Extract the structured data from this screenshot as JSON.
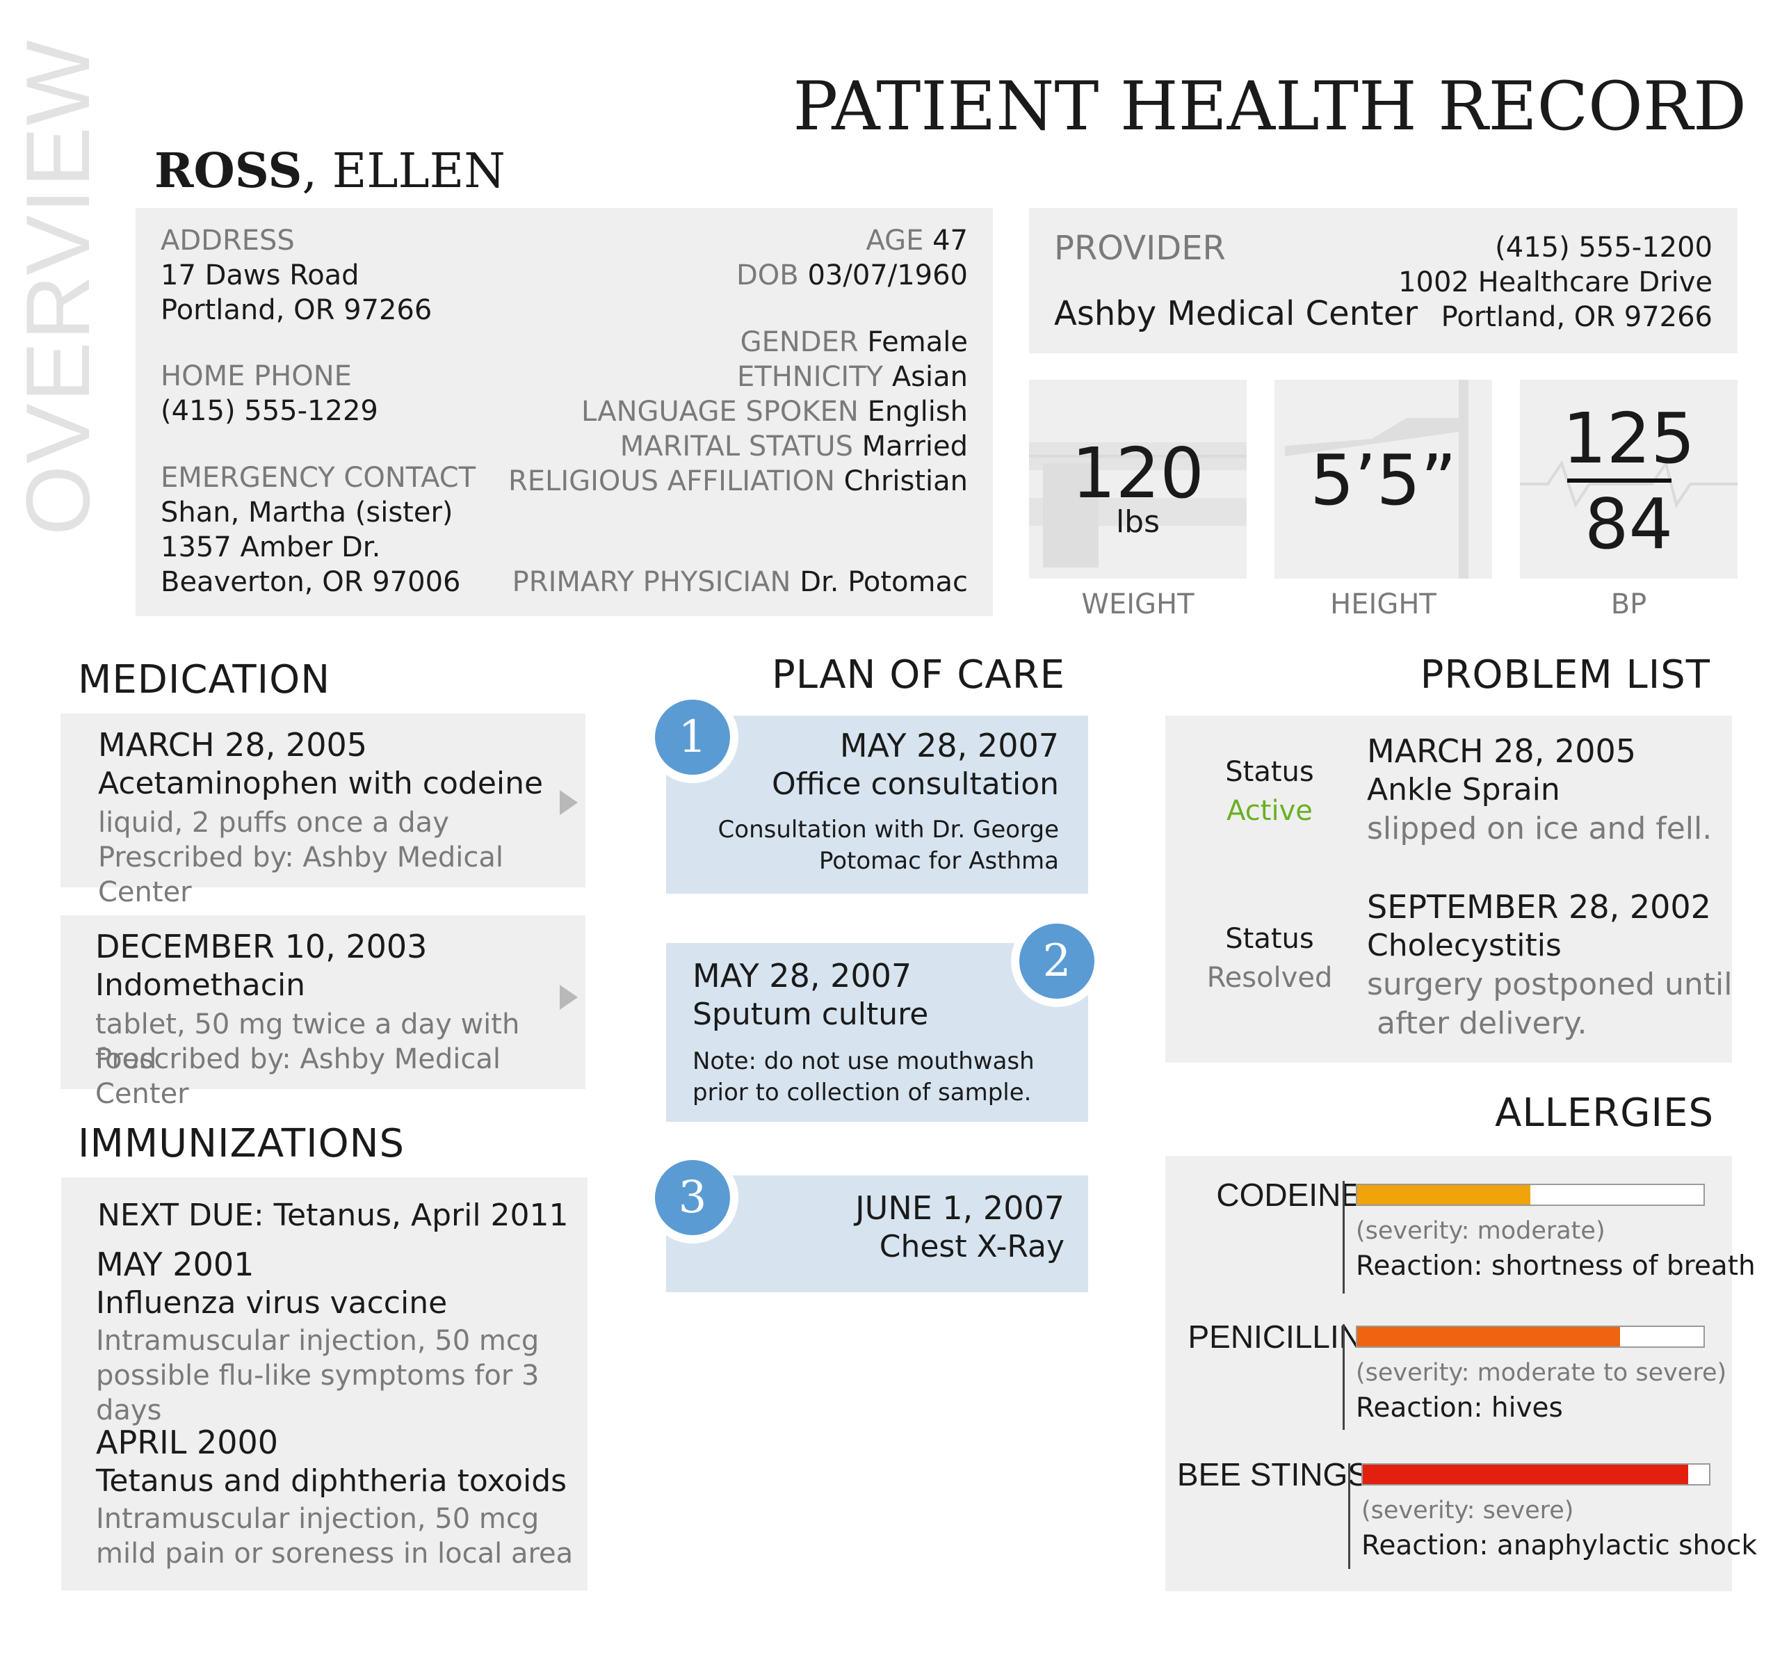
{
  "title": "PATIENT HEALTH RECORD",
  "patient": {
    "last": "ROSS",
    "first": ", ELLEN"
  },
  "side_label": "OVERVIEW",
  "overview": {
    "address_label": "ADDRESS",
    "address_line1": "17 Daws Road",
    "address_line2": "Portland, OR 97266",
    "phone_label": "HOME PHONE",
    "phone": "(415) 555-1229",
    "emergency_label": "EMERGENCY CONTACT",
    "emergency_name": "Shan, Martha (sister)",
    "emergency_line1": "1357 Amber Dr.",
    "emergency_line2": "Beaverton, OR 97006",
    "fields": [
      {
        "label": "AGE",
        "value": "47"
      },
      {
        "label": "DOB",
        "value": "03/07/1960"
      },
      {
        "label": "GENDER",
        "value": "Female"
      },
      {
        "label": "ETHNICITY",
        "value": "Asian"
      },
      {
        "label": "LANGUAGE SPOKEN",
        "value": "English"
      },
      {
        "label": "MARITAL STATUS",
        "value": "Married"
      },
      {
        "label": "RELIGIOUS AFFILIATION",
        "value": "Christian"
      },
      {
        "label": "PRIMARY PHYSICIAN",
        "value": "Dr. Potomac"
      }
    ]
  },
  "provider": {
    "label": "PROVIDER",
    "name": "Ashby Medical Center",
    "phone": "(415) 555-1200",
    "address1": "1002 Healthcare Drive",
    "address2": "Portland, OR 97266"
  },
  "vitals": {
    "weight": {
      "value": "120",
      "unit": "lbs",
      "label": "WEIGHT"
    },
    "height": {
      "value": "5’5”",
      "label": "HEIGHT"
    },
    "bp": {
      "systolic": "125",
      "diastolic": "84",
      "label": "BP"
    }
  },
  "medication": {
    "heading": "MEDICATION",
    "items": [
      {
        "date": "MARCH 28, 2005",
        "name": "Acetaminophen with codeine",
        "dosage": "liquid, 2 puffs once a day",
        "prescribed": "Prescribed by: Ashby Medical Center"
      },
      {
        "date": "DECEMBER 10, 2003",
        "name": "Indomethacin",
        "dosage": "tablet, 50 mg twice a day with food",
        "prescribed": "Prescribed by: Ashby Medical Center"
      }
    ]
  },
  "immunizations": {
    "heading": "IMMUNIZATIONS",
    "next_due": "NEXT DUE: Tetanus, April 2011",
    "items": [
      {
        "date": "MAY 2001",
        "name": "Influenza virus vaccine",
        "detail1": "Intramuscular injection, 50 mcg",
        "detail2": "possible flu-like symptoms for 3 days"
      },
      {
        "date": "APRIL 2000",
        "name": "Tetanus and diphtheria toxoids",
        "detail1": "Intramuscular injection, 50 mcg",
        "detail2": "mild pain or soreness in local area"
      }
    ]
  },
  "plan_of_care": {
    "heading": "PLAN OF CARE",
    "items": [
      {
        "num": "1",
        "date": "MAY 28, 2007",
        "title": "Office consultation",
        "note1": "Consultation with Dr. George",
        "note2": "Potomac for Asthma"
      },
      {
        "num": "2",
        "date": "MAY 28, 2007",
        "title": "Sputum culture",
        "note1": "Note: do not use mouthwash",
        "note2": "prior to collection of sample."
      },
      {
        "num": "3",
        "date": "JUNE 1, 2007",
        "title": "Chest X-Ray"
      }
    ]
  },
  "problem_list": {
    "heading": "PROBLEM LIST",
    "items": [
      {
        "status_label": "Status",
        "status": "Active",
        "status_color": "#6ab023",
        "date": "MARCH 28, 2005",
        "name": "Ankle Sprain",
        "note1": "slipped on ice and fell."
      },
      {
        "status_label": "Status",
        "status": "Resolved",
        "status_color": "#7a7a7a",
        "date": "SEPTEMBER 28, 2002",
        "name": "Cholecystitis",
        "note1": "surgery postponed until",
        "note2": " after delivery."
      }
    ]
  },
  "allergies": {
    "heading": "ALLERGIES",
    "items": [
      {
        "name": "CODEINE",
        "severity_text": "(severity: moderate)",
        "reaction": "Reaction: shortness of breath",
        "severity_level": 0.5,
        "color": "#f0a30a"
      },
      {
        "name": "PENICILLIN",
        "severity_text": "(severity: moderate to severe)",
        "reaction": "Reaction: hives",
        "severity_level": 0.76,
        "color": "#ee6410"
      },
      {
        "name": "BEE STINGS",
        "severity_text": "(severity: severe)",
        "reaction": "Reaction: anaphylactic shock",
        "severity_level": 0.94,
        "color": "#e32010"
      }
    ]
  }
}
